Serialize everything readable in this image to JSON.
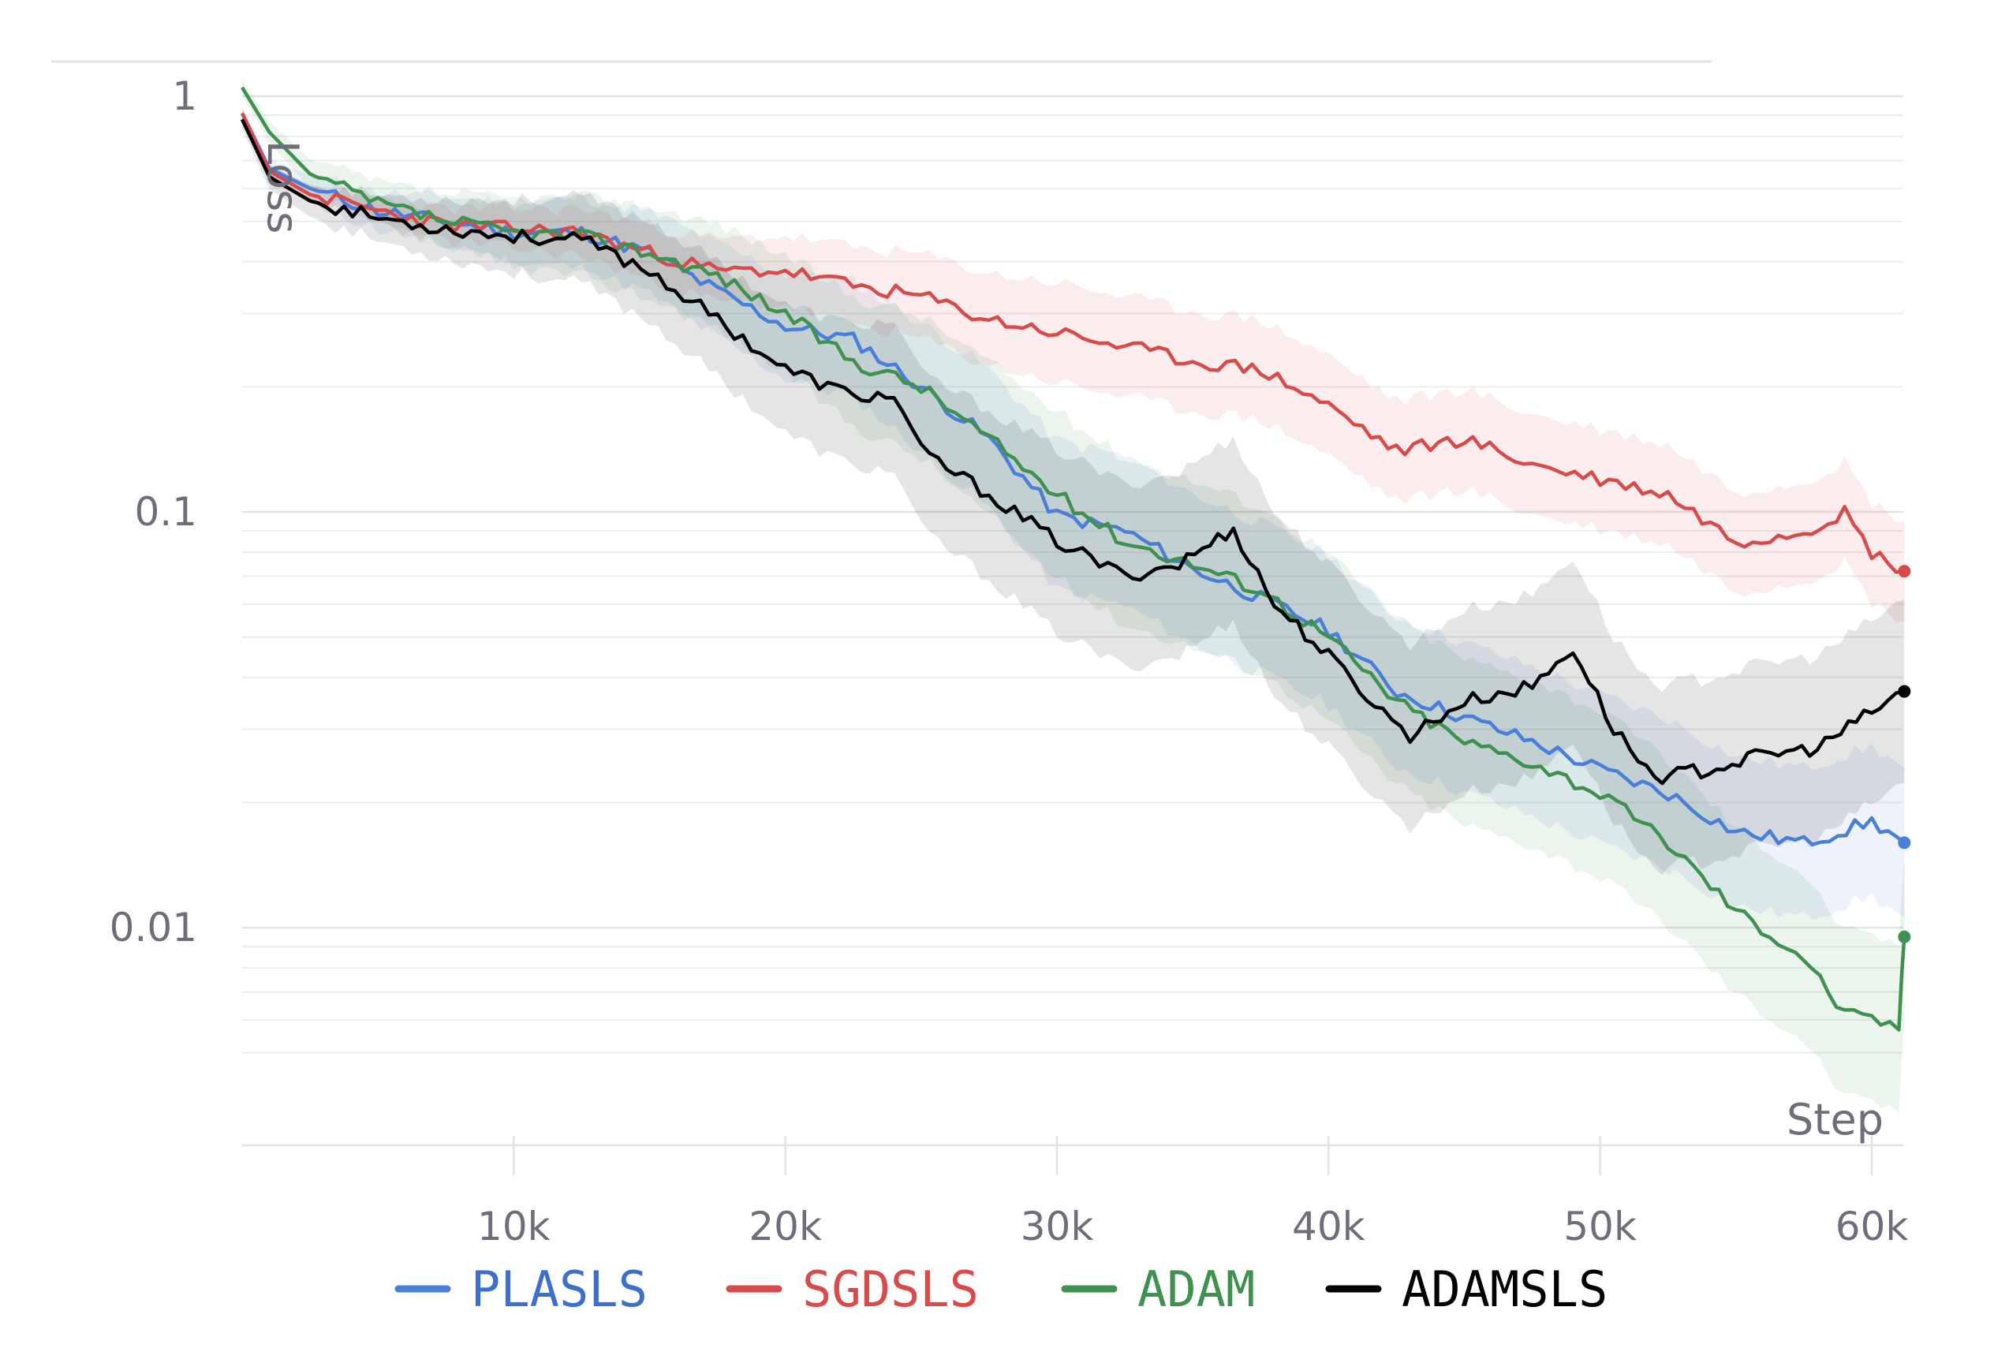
{
  "chart_data": {
    "type": "line",
    "xlabel": "Step",
    "ylabel": "Loss",
    "yscale": "log",
    "ylim": [
      0.0045,
      1.25
    ],
    "xlim": [
      0,
      61200
    ],
    "xticks": [
      {
        "value": 10000,
        "label": "10k"
      },
      {
        "value": 20000,
        "label": "20k"
      },
      {
        "value": 30000,
        "label": "30k"
      },
      {
        "value": 40000,
        "label": "40k"
      },
      {
        "value": 50000,
        "label": "50k"
      },
      {
        "value": 60000,
        "label": "60k"
      }
    ],
    "yticks": [
      {
        "value": 1,
        "label": "1"
      },
      {
        "value": 0.1,
        "label": "0.1"
      },
      {
        "value": 0.01,
        "label": "0.01"
      }
    ],
    "grid": true,
    "legend_position": "bottom",
    "series": [
      {
        "name": "PLASLS",
        "color": "#4a7fd9",
        "x": [
          0,
          1000,
          2500,
          5000,
          7500,
          10000,
          12500,
          15000,
          17500,
          20000,
          22500,
          25000,
          27500,
          30000,
          32500,
          35000,
          37500,
          40000,
          42500,
          45000,
          47500,
          50000,
          52500,
          55000,
          57500,
          60000,
          61200
        ],
        "values": [
          0.91,
          0.67,
          0.6,
          0.53,
          0.5,
          0.47,
          0.47,
          0.42,
          0.34,
          0.28,
          0.26,
          0.2,
          0.15,
          0.098,
          0.09,
          0.073,
          0.062,
          0.052,
          0.037,
          0.032,
          0.028,
          0.024,
          0.021,
          0.017,
          0.016,
          0.018,
          0.016
        ],
        "band": 0.18
      },
      {
        "name": "SGDSLS",
        "color": "#d94a4a",
        "x": [
          0,
          1000,
          2500,
          5000,
          7500,
          10000,
          12500,
          15000,
          17500,
          20000,
          22500,
          25000,
          27500,
          30000,
          32500,
          35000,
          37500,
          40000,
          42500,
          45000,
          47500,
          50000,
          52500,
          55000,
          57500,
          59000,
          60000,
          61200
        ],
        "values": [
          0.91,
          0.66,
          0.58,
          0.53,
          0.49,
          0.48,
          0.47,
          0.42,
          0.38,
          0.38,
          0.35,
          0.33,
          0.29,
          0.27,
          0.25,
          0.23,
          0.22,
          0.18,
          0.14,
          0.15,
          0.13,
          0.12,
          0.11,
          0.085,
          0.09,
          0.1,
          0.08,
          0.072
        ],
        "band": 0.12
      },
      {
        "name": "ADAM",
        "color": "#3f9150",
        "x": [
          0,
          1000,
          2500,
          5000,
          7500,
          10000,
          12500,
          15000,
          17500,
          20000,
          22500,
          25000,
          27500,
          30000,
          32500,
          35000,
          37500,
          40000,
          42500,
          45000,
          47500,
          50000,
          52500,
          55000,
          57500,
          59000,
          60000,
          61000,
          61200
        ],
        "values": [
          1.05,
          0.82,
          0.65,
          0.55,
          0.5,
          0.47,
          0.46,
          0.42,
          0.37,
          0.3,
          0.23,
          0.2,
          0.15,
          0.11,
          0.085,
          0.075,
          0.065,
          0.05,
          0.035,
          0.028,
          0.025,
          0.021,
          0.016,
          0.011,
          0.0085,
          0.0062,
          0.006,
          0.0058,
          0.0095
        ],
        "band": 0.2
      },
      {
        "name": "ADAMSLS",
        "color": "#000000",
        "x": [
          0,
          1000,
          2500,
          5000,
          7500,
          10000,
          12500,
          15000,
          17500,
          20000,
          22500,
          24000,
          25000,
          27500,
          30000,
          32500,
          34500,
          36500,
          38000,
          40000,
          42000,
          43000,
          45000,
          47500,
          49000,
          50500,
          52000,
          54000,
          56000,
          58000,
          60000,
          61200
        ],
        "values": [
          0.88,
          0.64,
          0.56,
          0.51,
          0.48,
          0.46,
          0.45,
          0.38,
          0.29,
          0.22,
          0.19,
          0.19,
          0.14,
          0.11,
          0.085,
          0.07,
          0.075,
          0.091,
          0.06,
          0.045,
          0.033,
          0.029,
          0.035,
          0.038,
          0.047,
          0.03,
          0.023,
          0.024,
          0.026,
          0.027,
          0.033,
          0.037
        ],
        "band": 0.22
      }
    ]
  }
}
